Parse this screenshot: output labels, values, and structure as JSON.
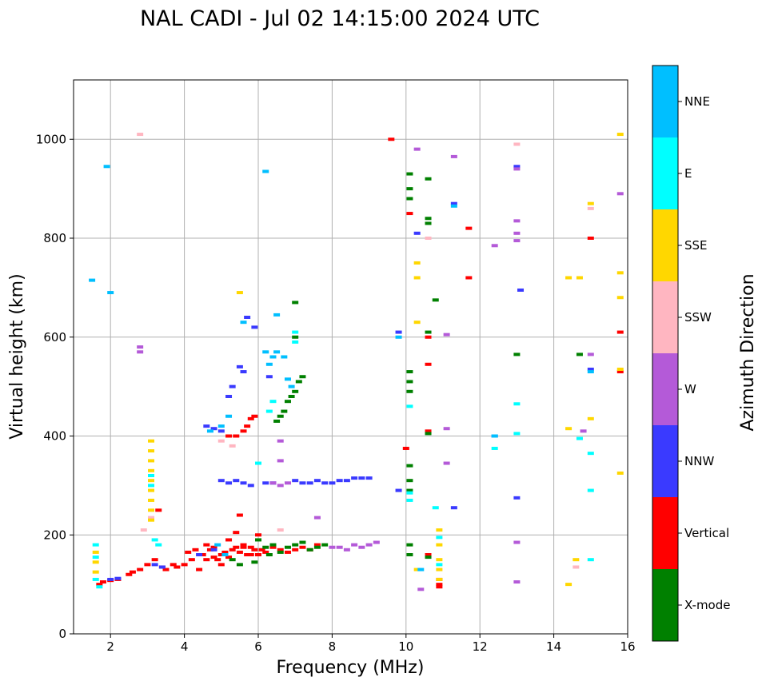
{
  "chart_data": {
    "type": "scatter",
    "title": "NAL CADI - Jul 02 14:15:00 2024 UTC",
    "xlabel": "Frequency (MHz)",
    "ylabel": "Virtual height (km)",
    "xlim": [
      1,
      16
    ],
    "ylim": [
      0,
      1120
    ],
    "xticks": [
      2,
      4,
      6,
      8,
      10,
      12,
      14,
      16
    ],
    "yticks": [
      0,
      200,
      400,
      600,
      800,
      1000
    ],
    "grid": true,
    "colorbar": {
      "label": "Azimuth Direction",
      "categories": [
        {
          "name": "X-mode",
          "color": "#008000"
        },
        {
          "name": "Vertical",
          "color": "#ff0000"
        },
        {
          "name": "NNW",
          "color": "#3a3aff"
        },
        {
          "name": "W",
          "color": "#b45ad8"
        },
        {
          "name": "SSW",
          "color": "#ffb6c1"
        },
        {
          "name": "SSE",
          "color": "#ffd700"
        },
        {
          "name": "E",
          "color": "#00ffff"
        },
        {
          "name": "NNE",
          "color": "#00bfff"
        }
      ]
    },
    "series": [
      {
        "name": "Vertical",
        "points": [
          [
            1.7,
            100
          ],
          [
            1.8,
            105
          ],
          [
            2.0,
            108
          ],
          [
            2.2,
            110
          ],
          [
            2.5,
            120
          ],
          [
            2.6,
            125
          ],
          [
            2.8,
            130
          ],
          [
            3.0,
            140
          ],
          [
            3.2,
            150
          ],
          [
            3.3,
            250
          ],
          [
            3.4,
            135
          ],
          [
            3.5,
            130
          ],
          [
            3.7,
            140
          ],
          [
            3.8,
            135
          ],
          [
            4.0,
            140
          ],
          [
            4.1,
            165
          ],
          [
            4.2,
            150
          ],
          [
            4.3,
            170
          ],
          [
            4.4,
            130
          ],
          [
            4.5,
            160
          ],
          [
            4.6,
            150
          ],
          [
            4.7,
            170
          ],
          [
            4.8,
            175
          ],
          [
            4.9,
            150
          ],
          [
            5.0,
            160
          ],
          [
            5.0,
            140
          ],
          [
            5.1,
            165
          ],
          [
            5.2,
            155
          ],
          [
            5.3,
            170
          ],
          [
            5.4,
            175
          ],
          [
            5.5,
            165
          ],
          [
            5.6,
            180
          ],
          [
            5.7,
            160
          ],
          [
            5.8,
            175
          ],
          [
            5.9,
            170
          ],
          [
            6.0,
            160
          ],
          [
            6.1,
            170
          ],
          [
            6.2,
            165
          ],
          [
            6.4,
            175
          ],
          [
            6.6,
            170
          ],
          [
            6.8,
            165
          ],
          [
            7.0,
            170
          ],
          [
            7.2,
            175
          ],
          [
            7.4,
            170
          ],
          [
            7.6,
            180
          ],
          [
            4.6,
            180
          ],
          [
            4.8,
            155
          ],
          [
            5.2,
            190
          ],
          [
            5.4,
            205
          ],
          [
            5.6,
            175
          ],
          [
            5.8,
            160
          ],
          [
            5.2,
            400
          ],
          [
            5.4,
            400
          ],
          [
            5.6,
            410
          ],
          [
            5.7,
            420
          ],
          [
            5.8,
            435
          ],
          [
            5.9,
            440
          ],
          [
            10.0,
            375
          ],
          [
            10.6,
            600
          ],
          [
            10.6,
            545
          ],
          [
            10.6,
            410
          ],
          [
            10.6,
            160
          ],
          [
            10.9,
            110
          ],
          [
            10.9,
            100
          ],
          [
            10.9,
            95
          ],
          [
            11.7,
            820
          ],
          [
            11.7,
            720
          ],
          [
            15.0,
            800
          ],
          [
            15.8,
            610
          ],
          [
            15.8,
            530
          ],
          [
            10.1,
            850
          ],
          [
            9.6,
            1000
          ],
          [
            5.5,
            240
          ],
          [
            6.0,
            200
          ]
        ]
      },
      {
        "name": "X-mode",
        "points": [
          [
            6.2,
            175
          ],
          [
            6.4,
            180
          ],
          [
            6.6,
            165
          ],
          [
            6.8,
            175
          ],
          [
            7.0,
            180
          ],
          [
            7.2,
            185
          ],
          [
            7.4,
            170
          ],
          [
            7.6,
            175
          ],
          [
            7.8,
            180
          ],
          [
            6.5,
            430
          ],
          [
            6.6,
            440
          ],
          [
            6.7,
            450
          ],
          [
            6.8,
            470
          ],
          [
            6.9,
            480
          ],
          [
            7.0,
            490
          ],
          [
            7.1,
            510
          ],
          [
            7.2,
            520
          ],
          [
            7.0,
            670
          ],
          [
            7.0,
            600
          ],
          [
            10.1,
            930
          ],
          [
            10.1,
            900
          ],
          [
            10.1,
            880
          ],
          [
            10.1,
            530
          ],
          [
            10.1,
            510
          ],
          [
            10.1,
            490
          ],
          [
            10.1,
            340
          ],
          [
            10.1,
            310
          ],
          [
            10.1,
            290
          ],
          [
            10.1,
            180
          ],
          [
            10.1,
            160
          ],
          [
            10.6,
            920
          ],
          [
            10.6,
            840
          ],
          [
            10.6,
            830
          ],
          [
            10.6,
            610
          ],
          [
            10.6,
            405
          ],
          [
            10.6,
            155
          ],
          [
            10.8,
            675
          ],
          [
            13.0,
            565
          ],
          [
            14.7,
            565
          ],
          [
            5.3,
            150
          ],
          [
            5.5,
            140
          ],
          [
            5.9,
            145
          ],
          [
            6.3,
            160
          ],
          [
            6.0,
            190
          ]
        ]
      },
      {
        "name": "NNW",
        "points": [
          [
            2.0,
            110
          ],
          [
            2.2,
            112
          ],
          [
            3.2,
            140
          ],
          [
            3.4,
            135
          ],
          [
            5.0,
            310
          ],
          [
            5.2,
            305
          ],
          [
            5.4,
            310
          ],
          [
            5.6,
            305
          ],
          [
            5.8,
            300
          ],
          [
            6.2,
            305
          ],
          [
            6.4,
            305
          ],
          [
            7.0,
            310
          ],
          [
            7.2,
            305
          ],
          [
            7.4,
            305
          ],
          [
            7.6,
            310
          ],
          [
            7.8,
            305
          ],
          [
            8.0,
            305
          ],
          [
            8.2,
            310
          ],
          [
            8.4,
            310
          ],
          [
            8.6,
            315
          ],
          [
            8.8,
            315
          ],
          [
            9.0,
            315
          ],
          [
            4.6,
            420
          ],
          [
            4.8,
            415
          ],
          [
            5.0,
            410
          ],
          [
            5.2,
            480
          ],
          [
            5.3,
            500
          ],
          [
            5.5,
            540
          ],
          [
            5.6,
            530
          ],
          [
            5.7,
            640
          ],
          [
            5.9,
            620
          ],
          [
            6.3,
            520
          ],
          [
            9.8,
            610
          ],
          [
            9.8,
            290
          ],
          [
            12.4,
            400
          ],
          [
            13.0,
            945
          ],
          [
            13.0,
            275
          ],
          [
            13.1,
            695
          ],
          [
            15.0,
            535
          ],
          [
            10.3,
            810
          ],
          [
            11.3,
            870
          ],
          [
            11.3,
            255
          ],
          [
            4.4,
            160
          ],
          [
            4.8,
            170
          ]
        ]
      },
      {
        "name": "W",
        "points": [
          [
            6.4,
            305
          ],
          [
            6.6,
            300
          ],
          [
            6.8,
            305
          ],
          [
            7.6,
            235
          ],
          [
            8.0,
            175
          ],
          [
            8.2,
            175
          ],
          [
            8.4,
            170
          ],
          [
            8.6,
            180
          ],
          [
            8.8,
            175
          ],
          [
            9.0,
            180
          ],
          [
            9.2,
            185
          ],
          [
            13.0,
            940
          ],
          [
            13.0,
            835
          ],
          [
            13.0,
            810
          ],
          [
            13.0,
            795
          ],
          [
            13.0,
            185
          ],
          [
            13.0,
            105
          ],
          [
            15.0,
            565
          ],
          [
            15.8,
            890
          ],
          [
            10.3,
            980
          ],
          [
            10.4,
            90
          ],
          [
            11.3,
            965
          ],
          [
            11.1,
            605
          ],
          [
            11.1,
            415
          ],
          [
            11.1,
            345
          ],
          [
            12.4,
            785
          ],
          [
            2.8,
            580
          ],
          [
            2.8,
            570
          ],
          [
            6.6,
            390
          ],
          [
            6.6,
            350
          ],
          [
            14.8,
            410
          ]
        ]
      },
      {
        "name": "SSW",
        "points": [
          [
            2.8,
            1010
          ],
          [
            2.9,
            210
          ],
          [
            3.1,
            235
          ],
          [
            5.0,
            390
          ],
          [
            10.6,
            800
          ],
          [
            13.0,
            990
          ],
          [
            15.0,
            860
          ],
          [
            14.6,
            135
          ],
          [
            5.3,
            380
          ],
          [
            6.6,
            210
          ]
        ]
      },
      {
        "name": "SSE",
        "points": [
          [
            1.6,
            165
          ],
          [
            1.6,
            145
          ],
          [
            1.6,
            125
          ],
          [
            3.1,
            390
          ],
          [
            3.1,
            370
          ],
          [
            3.1,
            350
          ],
          [
            3.1,
            330
          ],
          [
            3.1,
            310
          ],
          [
            3.1,
            290
          ],
          [
            3.1,
            270
          ],
          [
            3.1,
            250
          ],
          [
            3.1,
            230
          ],
          [
            10.3,
            750
          ],
          [
            10.3,
            720
          ],
          [
            10.3,
            630
          ],
          [
            10.9,
            210
          ],
          [
            10.9,
            180
          ],
          [
            10.9,
            150
          ],
          [
            10.9,
            130
          ],
          [
            10.9,
            110
          ],
          [
            14.4,
            720
          ],
          [
            14.4,
            415
          ],
          [
            14.4,
            100
          ],
          [
            14.7,
            720
          ],
          [
            14.6,
            150
          ],
          [
            15.0,
            870
          ],
          [
            15.0,
            435
          ],
          [
            15.8,
            1010
          ],
          [
            15.8,
            730
          ],
          [
            15.8,
            680
          ],
          [
            15.8,
            535
          ],
          [
            15.8,
            325
          ],
          [
            10.3,
            130
          ],
          [
            5.5,
            690
          ]
        ]
      },
      {
        "name": "E",
        "points": [
          [
            1.6,
            180
          ],
          [
            1.6,
            155
          ],
          [
            1.6,
            110
          ],
          [
            1.7,
            95
          ],
          [
            3.1,
            320
          ],
          [
            3.1,
            300
          ],
          [
            3.2,
            190
          ],
          [
            3.3,
            180
          ],
          [
            7.0,
            610
          ],
          [
            7.0,
            590
          ],
          [
            10.1,
            460
          ],
          [
            10.1,
            285
          ],
          [
            10.1,
            270
          ],
          [
            10.8,
            255
          ],
          [
            10.9,
            195
          ],
          [
            10.9,
            140
          ],
          [
            13.0,
            465
          ],
          [
            13.0,
            405
          ],
          [
            14.7,
            395
          ],
          [
            15.0,
            365
          ],
          [
            15.0,
            290
          ],
          [
            15.0,
            150
          ],
          [
            12.4,
            375
          ],
          [
            6.0,
            345
          ],
          [
            6.3,
            450
          ],
          [
            6.4,
            470
          ]
        ]
      },
      {
        "name": "NNE",
        "points": [
          [
            1.9,
            945
          ],
          [
            1.5,
            715
          ],
          [
            2.0,
            690
          ],
          [
            6.2,
            935
          ],
          [
            6.5,
            645
          ],
          [
            5.6,
            630
          ],
          [
            6.2,
            570
          ],
          [
            6.3,
            545
          ],
          [
            6.4,
            560
          ],
          [
            6.5,
            570
          ],
          [
            6.7,
            560
          ],
          [
            6.8,
            515
          ],
          [
            6.9,
            500
          ],
          [
            5.0,
            420
          ],
          [
            5.2,
            440
          ],
          [
            4.7,
            410
          ],
          [
            9.8,
            600
          ],
          [
            11.3,
            865
          ],
          [
            12.4,
            400
          ],
          [
            15.0,
            530
          ],
          [
            10.4,
            130
          ],
          [
            4.9,
            180
          ],
          [
            5.1,
            160
          ]
        ]
      }
    ]
  }
}
